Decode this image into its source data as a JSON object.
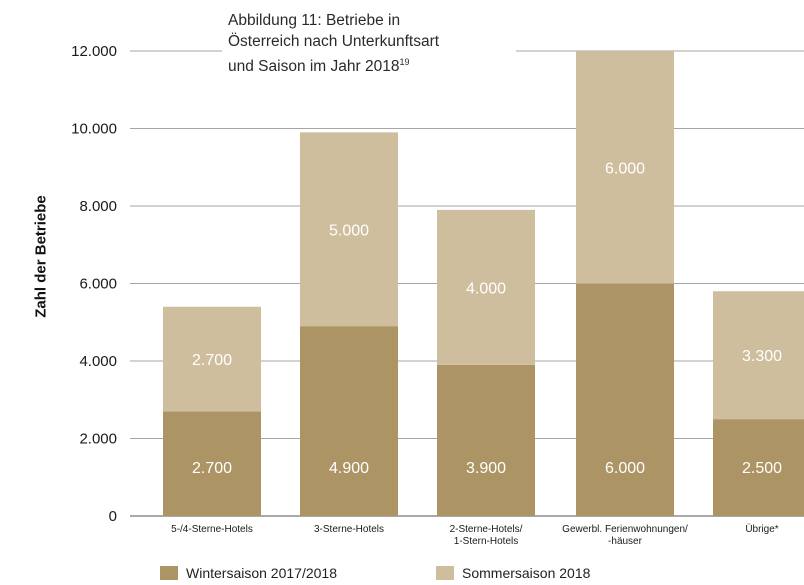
{
  "title_lines": [
    "Abbildung 11: Betriebe in",
    "Österreich nach Unterkunftsart",
    "und Saison im Jahr 2018"
  ],
  "title_footnote": "19",
  "colors": {
    "winter": "#ad9465",
    "summer": "#cfbe9e",
    "axis": "#555555",
    "grid": "#888888",
    "label": "#ffffff"
  },
  "chart_data": {
    "type": "bar",
    "stacked": true,
    "categories": [
      [
        "5-/4-Sterne-Hotels"
      ],
      [
        "3-Sterne-Hotels"
      ],
      [
        "2-Sterne-Hotels/",
        "1-Stern-Hotels"
      ],
      [
        "Gewerbl. Ferienwohnungen/",
        "-häuser"
      ],
      [
        "Übrige*"
      ]
    ],
    "series": [
      {
        "name": "Wintersaison 2017/2018",
        "values": [
          2700,
          4900,
          3900,
          6000,
          2500
        ],
        "labels": [
          "2.700",
          "4.900",
          "3.900",
          "6.000",
          "2.500"
        ]
      },
      {
        "name": "Sommersaison 2018",
        "values": [
          2700,
          5000,
          4000,
          6000,
          3300
        ],
        "labels": [
          "2.700",
          "5.000",
          "4.000",
          "6.000",
          "3.300"
        ]
      }
    ],
    "ylabel": "Zahl der Betriebe",
    "xlabel": "",
    "ylim": [
      0,
      12000
    ],
    "yticks": [
      0,
      2000,
      4000,
      6000,
      8000,
      10000,
      12000
    ],
    "ytick_labels": [
      "0",
      "2.000",
      "4.000",
      "6.000",
      "8.000",
      "10.000",
      "12.000"
    ],
    "grid": true,
    "legend_position": "bottom"
  }
}
